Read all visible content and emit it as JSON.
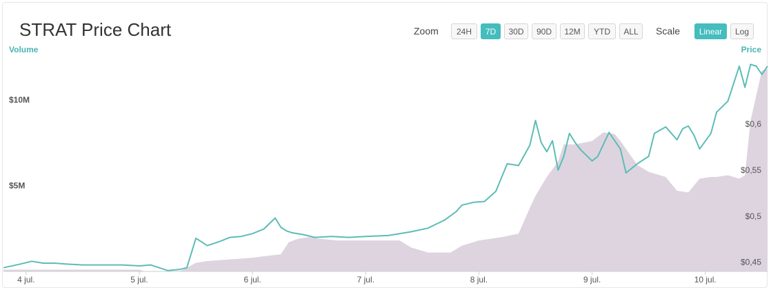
{
  "header": {
    "title": "STRAT Price Chart",
    "zoom_label": "Zoom",
    "zoom_options": [
      "24H",
      "7D",
      "30D",
      "90D",
      "12M",
      "YTD",
      "ALL"
    ],
    "zoom_selected": "7D",
    "scale_label": "Scale",
    "scale_options": [
      "Linear",
      "Log"
    ],
    "scale_selected": "Linear"
  },
  "colors": {
    "price_line": "#5cbcb6",
    "volume_fill": "#ddd4df",
    "accent": "#45bcbe"
  },
  "chart_data": {
    "type": "area",
    "title": "STRAT Price Chart",
    "x_tick_labels": [
      "4 jul.",
      "5 jul.",
      "6 jul.",
      "7 jul.",
      "8 jul.",
      "9 jul.",
      "10 jul."
    ],
    "x_range": [
      3.8,
      10.55
    ],
    "volume_axis": {
      "label": "Volume",
      "tick_labels": [
        "$5M",
        "$10M"
      ],
      "tick_values": [
        5000000,
        10000000
      ],
      "range": [
        0,
        12600000
      ]
    },
    "price_axis": {
      "label": "Price",
      "tick_labels": [
        "$0,45",
        "$0,5",
        "$0,55",
        "$0,6"
      ],
      "tick_values": [
        0.45,
        0.5,
        0.55,
        0.6
      ],
      "range": [
        0.44,
        0.675
      ]
    },
    "series": [
      {
        "name": "Price",
        "x": [
          3.8,
          3.95,
          4.05,
          4.15,
          4.25,
          4.35,
          4.5,
          4.6,
          4.75,
          4.85,
          5.0,
          5.1,
          5.25,
          5.35,
          5.42,
          5.5,
          5.55,
          5.6,
          5.65,
          5.72,
          5.8,
          5.9,
          6.0,
          6.1,
          6.2,
          6.25,
          6.3,
          6.35,
          6.45,
          6.55,
          6.7,
          6.85,
          7.0,
          7.2,
          7.4,
          7.55,
          7.7,
          7.8,
          7.85,
          7.95,
          8.05,
          8.15,
          8.25,
          8.35,
          8.45,
          8.5,
          8.55,
          8.6,
          8.65,
          8.7,
          8.75,
          8.8,
          8.85,
          8.9,
          9.0,
          9.05,
          9.15,
          9.2,
          9.25,
          9.3,
          9.4,
          9.5,
          9.55,
          9.65,
          9.75,
          9.8,
          9.85,
          9.9,
          9.95,
          10.05,
          10.1,
          10.2,
          10.3,
          10.35,
          10.4,
          10.45,
          10.5,
          10.55
        ],
        "values": [
          0.444,
          0.448,
          0.451,
          0.449,
          0.449,
          0.448,
          0.447,
          0.447,
          0.447,
          0.447,
          0.446,
          0.447,
          0.441,
          0.442,
          0.444,
          0.476,
          0.472,
          0.468,
          0.47,
          0.473,
          0.477,
          0.478,
          0.481,
          0.486,
          0.498,
          0.488,
          0.484,
          0.482,
          0.48,
          0.477,
          0.478,
          0.477,
          0.478,
          0.479,
          0.483,
          0.487,
          0.496,
          0.505,
          0.512,
          0.515,
          0.516,
          0.527,
          0.557,
          0.555,
          0.577,
          0.604,
          0.58,
          0.57,
          0.582,
          0.55,
          0.565,
          0.59,
          0.58,
          0.572,
          0.56,
          0.565,
          0.591,
          0.582,
          0.573,
          0.547,
          0.557,
          0.565,
          0.59,
          0.597,
          0.583,
          0.595,
          0.598,
          0.588,
          0.573,
          0.59,
          0.613,
          0.625,
          0.663,
          0.64,
          0.665,
          0.663,
          0.654,
          0.663
        ]
      },
      {
        "name": "Volume",
        "x": [
          3.8,
          4.2,
          5.0,
          5.05,
          5.35,
          5.42,
          5.5,
          5.6,
          5.8,
          6.0,
          6.25,
          6.32,
          6.4,
          6.5,
          6.6,
          6.75,
          7.0,
          7.2,
          7.3,
          7.4,
          7.55,
          7.75,
          7.85,
          8.0,
          8.2,
          8.35,
          8.45,
          8.5,
          8.6,
          8.7,
          8.75,
          8.85,
          9.0,
          9.1,
          9.2,
          9.25,
          9.4,
          9.5,
          9.65,
          9.75,
          9.85,
          9.95,
          10.05,
          10.1,
          10.2,
          10.3,
          10.35,
          10.4,
          10.5,
          10.55
        ],
        "values": [
          100000,
          100000,
          100000,
          0,
          0,
          200000,
          500000,
          600000,
          700000,
          800000,
          1000000,
          1700000,
          1900000,
          2000000,
          1900000,
          1800000,
          1800000,
          1800000,
          1800000,
          1400000,
          1100000,
          1100000,
          1500000,
          1800000,
          2000000,
          2200000,
          3700000,
          4400000,
          5500000,
          6400000,
          7400000,
          7400000,
          7600000,
          8100000,
          8000000,
          7600000,
          6200000,
          5800000,
          5500000,
          4700000,
          4600000,
          5400000,
          5500000,
          5500000,
          5600000,
          5400000,
          5600000,
          8800000,
          11700000,
          11800000
        ]
      }
    ],
    "grid": false,
    "legend": "none"
  }
}
